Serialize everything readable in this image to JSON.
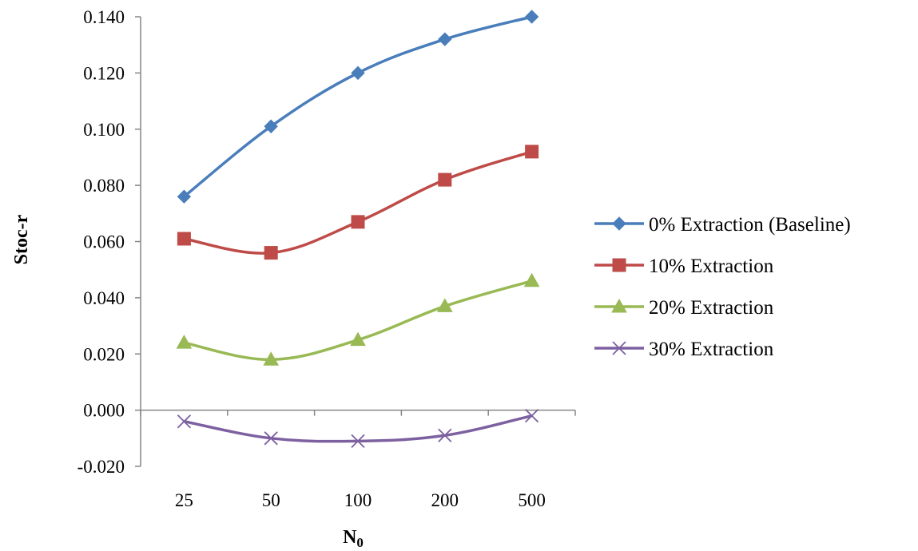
{
  "chart_data": {
    "type": "line",
    "title": "",
    "xlabel": "N",
    "xlabel_subscript": "0",
    "ylabel": "Stoc-r",
    "categories": [
      "25",
      "50",
      "100",
      "200",
      "500"
    ],
    "ylim": [
      -0.02,
      0.14
    ],
    "yticks": [
      "0.140",
      "0.120",
      "0.100",
      "0.080",
      "0.060",
      "0.040",
      "0.020",
      "0.000",
      "-0.020"
    ],
    "ytick_values": [
      0.14,
      0.12,
      0.1,
      0.08,
      0.06,
      0.04,
      0.02,
      0.0,
      -0.02
    ],
    "grid": false,
    "legend_position": "right",
    "series": [
      {
        "name": "0% Extraction (Baseline)",
        "values": [
          0.076,
          0.101,
          0.12,
          0.132,
          0.14
        ],
        "color": "#4a7ebb",
        "marker": "diamond"
      },
      {
        "name": "10% Extraction",
        "values": [
          0.061,
          0.056,
          0.067,
          0.082,
          0.092
        ],
        "color": "#be4b48",
        "marker": "square"
      },
      {
        "name": "20% Extraction",
        "values": [
          0.024,
          0.018,
          0.025,
          0.037,
          0.046
        ],
        "color": "#98b954",
        "marker": "triangle"
      },
      {
        "name": "30% Extraction",
        "values": [
          -0.004,
          -0.01,
          -0.011,
          -0.009,
          -0.002
        ],
        "color": "#7d60a0",
        "marker": "x"
      }
    ]
  }
}
